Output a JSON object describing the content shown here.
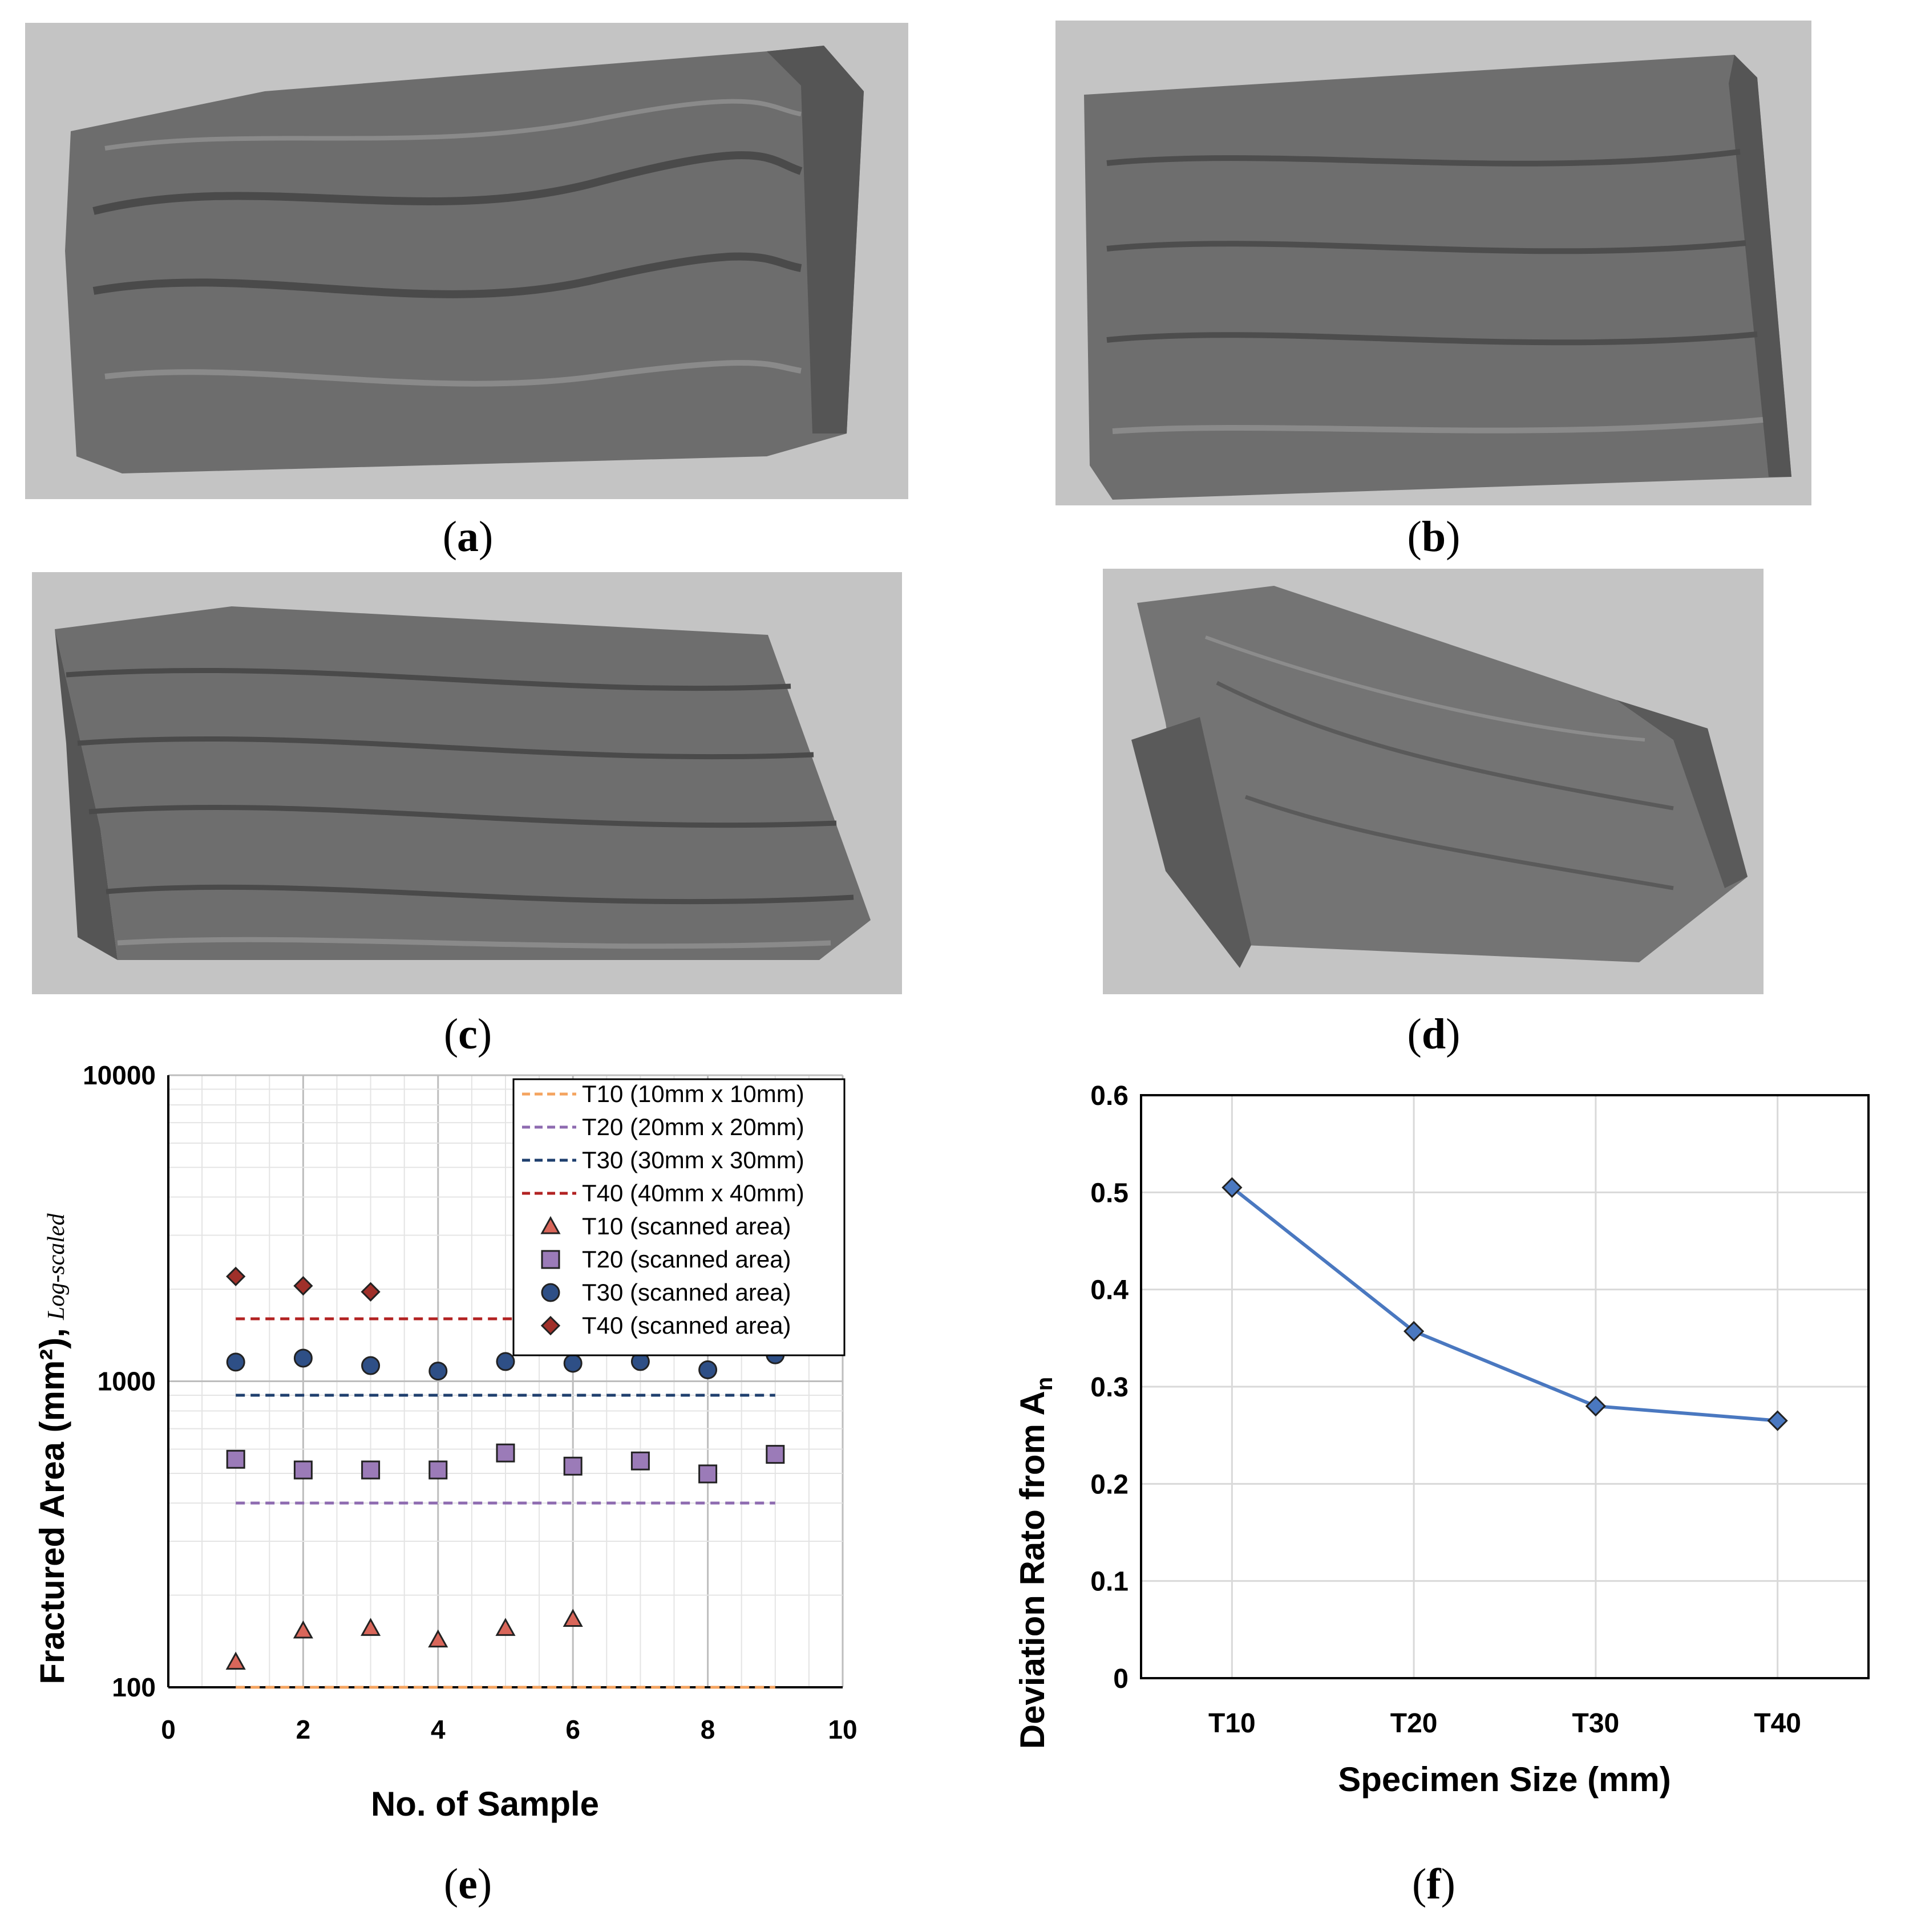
{
  "captions": {
    "a": "a",
    "b": "b",
    "c": "c",
    "d": "d",
    "e": "e",
    "f": "f"
  },
  "panels": {
    "a": "fracture-surface-scan-T10",
    "b": "fracture-surface-scan-T20",
    "c": "fracture-surface-scan-T30",
    "d": "fracture-surface-scan-T40"
  },
  "chart_data": [
    {
      "id": "e",
      "type": "scatter",
      "title": "",
      "xlabel": "No. of Sample",
      "ylabel": "Fractured Area (mm²),",
      "ylabel_suffix": "Log-scaled",
      "yscale": "log",
      "xlim": [
        0,
        10
      ],
      "ylim": [
        100,
        10000
      ],
      "xticks": [
        "0",
        "2",
        "4",
        "6",
        "8",
        "10"
      ],
      "yticks": [
        "100",
        "1000",
        "10000"
      ],
      "grid": true,
      "legend_position": "top-right",
      "reference_lines": [
        {
          "name": "T10 (10mm x 10mm)",
          "value": 100,
          "x": [
            1,
            9
          ],
          "color": "#f4a460"
        },
        {
          "name": "T20 (20mm x 20mm)",
          "value": 400,
          "x": [
            1,
            9
          ],
          "color": "#8e6bb0"
        },
        {
          "name": "T30 (30mm x 30mm)",
          "value": 900,
          "x": [
            1,
            9
          ],
          "color": "#1f3f6e"
        },
        {
          "name": "T40 (40mm x 40mm)",
          "value": 1600,
          "x": [
            1,
            9
          ],
          "color": "#b22222"
        }
      ],
      "series": [
        {
          "name": "T10 (scanned area)",
          "marker": "triangle",
          "color": "#d9665a",
          "x": [
            1,
            2,
            3,
            4,
            5,
            6
          ],
          "y": [
            121,
            153,
            156,
            143,
            156,
            167
          ]
        },
        {
          "name": "T20 (scanned area)",
          "marker": "square",
          "color": "#9b7bb8",
          "x": [
            1,
            2,
            3,
            4,
            5,
            6,
            7,
            8,
            9
          ],
          "y": [
            556,
            513,
            513,
            513,
            583,
            528,
            549,
            498,
            577
          ]
        },
        {
          "name": "T30 (scanned area)",
          "marker": "circle",
          "color": "#2e4f86",
          "x": [
            1,
            2,
            3,
            4,
            5,
            6,
            7,
            8,
            9
          ],
          "y": [
            1155,
            1190,
            1125,
            1080,
            1160,
            1145,
            1160,
            1090,
            1220
          ]
        },
        {
          "name": "T40 (scanned area)",
          "marker": "diamond",
          "color": "#a0302a",
          "x": [
            1,
            2,
            3
          ],
          "y": [
            2200,
            2050,
            1960
          ]
        }
      ]
    },
    {
      "id": "f",
      "type": "line",
      "title": "",
      "xlabel": "Specimen Size (mm)",
      "ylabel": "Deviation Rato from A",
      "ylabel_sub": "n",
      "categories": [
        "T10",
        "T20",
        "T30",
        "T40"
      ],
      "yticks": [
        "0",
        "0.1",
        "0.2",
        "0.3",
        "0.4",
        "0.5",
        "0.6"
      ],
      "ylim": [
        0,
        0.6
      ],
      "grid": true,
      "series": [
        {
          "name": "Deviation ratio",
          "marker": "diamond",
          "color": "#4a78c0",
          "values": [
            0.505,
            0.357,
            0.28,
            0.265
          ]
        }
      ]
    }
  ]
}
